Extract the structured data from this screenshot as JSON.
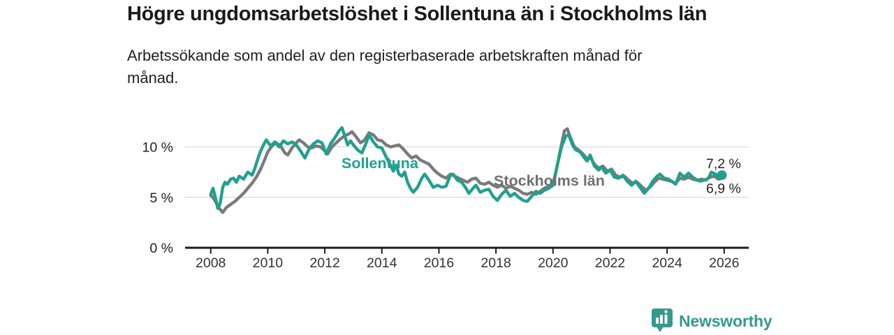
{
  "header": {
    "title": "Högre ungdomsarbetslöshet i Sollentuna än i Stockholms län",
    "subtitle_lines": [
      "Arbetssökande som andel av den registerbaserade arbetskraften månad för",
      "månad."
    ]
  },
  "chart_data": {
    "type": "line",
    "title": "Högre ungdomsarbetslöshet i Sollentuna än i Stockholms län",
    "subtitle": "Arbetssökande som andel av den registerbaserade arbetskraften månad för månad.",
    "unit": "%",
    "grid": "horizontal",
    "x_axis": {
      "range": [
        2007.03,
        2026.95
      ],
      "ticks": [
        2008,
        2010,
        2012,
        2014,
        2016,
        2018,
        2020,
        2022,
        2024,
        2026
      ]
    },
    "y_axis": {
      "range": [
        0,
        13.2
      ],
      "ticks": [
        {
          "value": 0,
          "label": "0 %"
        },
        {
          "value": 5,
          "label": "5 %"
        },
        {
          "value": 10,
          "label": "10 %"
        }
      ],
      "gridlines": [
        5,
        10
      ]
    },
    "series": [
      {
        "name": "Stockholms län",
        "color": "#7a7a7a",
        "label_color": "#6f6f6f",
        "end_label": "6,9 %",
        "end_value": 6.9,
        "end_dot": false,
        "points": [
          [
            2008.0,
            5.2
          ],
          [
            2008.1,
            4.9
          ],
          [
            2008.2,
            4.4
          ],
          [
            2008.3,
            3.9
          ],
          [
            2008.42,
            3.5
          ],
          [
            2008.55,
            4.0
          ],
          [
            2008.7,
            4.3
          ],
          [
            2008.85,
            4.6
          ],
          [
            2009.0,
            5.0
          ],
          [
            2009.15,
            5.4
          ],
          [
            2009.3,
            5.9
          ],
          [
            2009.45,
            6.4
          ],
          [
            2009.6,
            7.0
          ],
          [
            2009.75,
            7.8
          ],
          [
            2009.9,
            8.8
          ],
          [
            2010.0,
            9.5
          ],
          [
            2010.15,
            10.1
          ],
          [
            2010.3,
            10.4
          ],
          [
            2010.45,
            10.1
          ],
          [
            2010.6,
            9.4
          ],
          [
            2010.7,
            9.2
          ],
          [
            2010.85,
            9.9
          ],
          [
            2011.0,
            10.4
          ],
          [
            2011.1,
            10.7
          ],
          [
            2011.25,
            10.4
          ],
          [
            2011.4,
            10.0
          ],
          [
            2011.55,
            9.9
          ],
          [
            2011.7,
            10.1
          ],
          [
            2011.85,
            10.0
          ],
          [
            2012.0,
            9.6
          ],
          [
            2012.1,
            9.3
          ],
          [
            2012.25,
            10.0
          ],
          [
            2012.4,
            10.4
          ],
          [
            2012.55,
            10.8
          ],
          [
            2012.7,
            11.1
          ],
          [
            2012.85,
            11.3
          ],
          [
            2012.95,
            11.5
          ],
          [
            2013.1,
            11.0
          ],
          [
            2013.25,
            10.4
          ],
          [
            2013.4,
            10.7
          ],
          [
            2013.55,
            11.4
          ],
          [
            2013.7,
            11.2
          ],
          [
            2013.85,
            10.7
          ],
          [
            2014.0,
            10.6
          ],
          [
            2014.15,
            10.2
          ],
          [
            2014.3,
            10.0
          ],
          [
            2014.45,
            10.1
          ],
          [
            2014.6,
            10.2
          ],
          [
            2014.75,
            9.8
          ],
          [
            2014.9,
            9.3
          ],
          [
            2015.05,
            8.9
          ],
          [
            2015.2,
            9.1
          ],
          [
            2015.35,
            8.7
          ],
          [
            2015.5,
            8.5
          ],
          [
            2015.65,
            8.3
          ],
          [
            2015.8,
            7.8
          ],
          [
            2015.95,
            7.4
          ],
          [
            2016.1,
            7.1
          ],
          [
            2016.25,
            6.9
          ],
          [
            2016.4,
            7.3
          ],
          [
            2016.55,
            7.1
          ],
          [
            2016.7,
            6.9
          ],
          [
            2016.85,
            6.7
          ],
          [
            2017.0,
            6.5
          ],
          [
            2017.15,
            6.8
          ],
          [
            2017.3,
            6.9
          ],
          [
            2017.45,
            6.4
          ],
          [
            2017.6,
            6.3
          ],
          [
            2017.75,
            6.5
          ],
          [
            2017.9,
            6.2
          ],
          [
            2018.05,
            6.0
          ],
          [
            2018.2,
            6.2
          ],
          [
            2018.35,
            5.9
          ],
          [
            2018.5,
            6.1
          ],
          [
            2018.65,
            5.9
          ],
          [
            2018.8,
            5.7
          ],
          [
            2018.95,
            5.4
          ],
          [
            2019.1,
            5.3
          ],
          [
            2019.25,
            5.5
          ],
          [
            2019.4,
            5.3
          ],
          [
            2019.55,
            5.6
          ],
          [
            2019.7,
            5.9
          ],
          [
            2019.85,
            6.1
          ],
          [
            2020.0,
            6.4
          ],
          [
            2020.1,
            7.5
          ],
          [
            2020.25,
            9.6
          ],
          [
            2020.4,
            11.6
          ],
          [
            2020.5,
            11.8
          ],
          [
            2020.6,
            11.0
          ],
          [
            2020.75,
            10.0
          ],
          [
            2020.9,
            9.7
          ],
          [
            2021.05,
            9.3
          ],
          [
            2021.2,
            8.8
          ],
          [
            2021.3,
            9.0
          ],
          [
            2021.45,
            8.3
          ],
          [
            2021.6,
            7.9
          ],
          [
            2021.75,
            8.1
          ],
          [
            2021.9,
            7.6
          ],
          [
            2022.05,
            7.8
          ],
          [
            2022.2,
            7.2
          ],
          [
            2022.35,
            7.0
          ],
          [
            2022.5,
            7.1
          ],
          [
            2022.65,
            6.7
          ],
          [
            2022.8,
            6.4
          ],
          [
            2022.95,
            6.5
          ],
          [
            2023.1,
            6.1
          ],
          [
            2023.25,
            5.7
          ],
          [
            2023.4,
            6.0
          ],
          [
            2023.55,
            6.5
          ],
          [
            2023.7,
            6.9
          ],
          [
            2023.85,
            6.8
          ],
          [
            2024.0,
            6.7
          ],
          [
            2024.15,
            6.6
          ],
          [
            2024.3,
            6.4
          ],
          [
            2024.45,
            6.9
          ],
          [
            2024.6,
            6.8
          ],
          [
            2024.75,
            7.0
          ],
          [
            2024.9,
            6.8
          ],
          [
            2025.05,
            6.7
          ],
          [
            2025.2,
            6.8
          ],
          [
            2025.35,
            6.7
          ],
          [
            2025.5,
            7.0
          ],
          [
            2025.65,
            7.1
          ],
          [
            2025.8,
            6.8
          ],
          [
            2025.92,
            6.9
          ]
        ]
      },
      {
        "name": "Sollentuna",
        "color": "#21a08f",
        "label_color": "#21a08f",
        "end_label": "7,2 %",
        "end_value": 7.2,
        "end_dot": true,
        "points": [
          [
            2008.0,
            5.3
          ],
          [
            2008.08,
            5.9
          ],
          [
            2008.17,
            4.9
          ],
          [
            2008.25,
            3.9
          ],
          [
            2008.33,
            4.4
          ],
          [
            2008.42,
            6.0
          ],
          [
            2008.5,
            6.5
          ],
          [
            2008.58,
            6.3
          ],
          [
            2008.7,
            6.8
          ],
          [
            2008.8,
            6.9
          ],
          [
            2008.9,
            6.5
          ],
          [
            2009.0,
            7.1
          ],
          [
            2009.15,
            6.8
          ],
          [
            2009.3,
            7.5
          ],
          [
            2009.45,
            7.2
          ],
          [
            2009.55,
            7.9
          ],
          [
            2009.65,
            8.8
          ],
          [
            2009.75,
            9.6
          ],
          [
            2009.85,
            10.2
          ],
          [
            2009.95,
            10.7
          ],
          [
            2010.1,
            10.1
          ],
          [
            2010.25,
            10.5
          ],
          [
            2010.4,
            10.0
          ],
          [
            2010.55,
            10.6
          ],
          [
            2010.7,
            10.3
          ],
          [
            2010.85,
            10.5
          ],
          [
            2011.0,
            10.2
          ],
          [
            2011.15,
            9.6
          ],
          [
            2011.3,
            8.9
          ],
          [
            2011.45,
            9.8
          ],
          [
            2011.6,
            10.3
          ],
          [
            2011.75,
            10.6
          ],
          [
            2011.9,
            10.4
          ],
          [
            2012.05,
            9.3
          ],
          [
            2012.2,
            10.3
          ],
          [
            2012.35,
            10.9
          ],
          [
            2012.5,
            11.6
          ],
          [
            2012.6,
            11.9
          ],
          [
            2012.7,
            11.1
          ],
          [
            2012.8,
            10.2
          ],
          [
            2012.9,
            10.6
          ],
          [
            2013.0,
            10.2
          ],
          [
            2013.15,
            9.7
          ],
          [
            2013.3,
            9.4
          ],
          [
            2013.45,
            10.4
          ],
          [
            2013.55,
            11.2
          ],
          [
            2013.7,
            10.5
          ],
          [
            2013.85,
            10.0
          ],
          [
            2014.0,
            9.9
          ],
          [
            2014.15,
            9.0
          ],
          [
            2014.3,
            8.2
          ],
          [
            2014.4,
            7.6
          ],
          [
            2014.5,
            8.2
          ],
          [
            2014.6,
            7.3
          ],
          [
            2014.7,
            7.1
          ],
          [
            2014.8,
            7.5
          ],
          [
            2014.9,
            6.5
          ],
          [
            2015.0,
            5.9
          ],
          [
            2015.1,
            5.5
          ],
          [
            2015.25,
            6.0
          ],
          [
            2015.4,
            6.9
          ],
          [
            2015.5,
            7.3
          ],
          [
            2015.65,
            6.7
          ],
          [
            2015.8,
            6.0
          ],
          [
            2015.95,
            6.2
          ],
          [
            2016.1,
            6.0
          ],
          [
            2016.25,
            6.1
          ],
          [
            2016.4,
            7.2
          ],
          [
            2016.5,
            7.3
          ],
          [
            2016.65,
            6.7
          ],
          [
            2016.8,
            6.5
          ],
          [
            2016.95,
            5.9
          ],
          [
            2017.05,
            5.4
          ],
          [
            2017.2,
            5.9
          ],
          [
            2017.3,
            6.2
          ],
          [
            2017.45,
            5.5
          ],
          [
            2017.6,
            5.7
          ],
          [
            2017.75,
            5.8
          ],
          [
            2017.9,
            5.1
          ],
          [
            2018.05,
            4.7
          ],
          [
            2018.2,
            5.3
          ],
          [
            2018.35,
            5.7
          ],
          [
            2018.5,
            5.1
          ],
          [
            2018.65,
            5.4
          ],
          [
            2018.8,
            5.0
          ],
          [
            2018.95,
            4.7
          ],
          [
            2019.1,
            4.6
          ],
          [
            2019.25,
            5.1
          ],
          [
            2019.4,
            5.6
          ],
          [
            2019.55,
            5.4
          ],
          [
            2019.7,
            5.7
          ],
          [
            2019.85,
            5.9
          ],
          [
            2020.0,
            6.2
          ],
          [
            2020.15,
            8.2
          ],
          [
            2020.3,
            10.0
          ],
          [
            2020.45,
            11.1
          ],
          [
            2020.55,
            11.2
          ],
          [
            2020.7,
            10.1
          ],
          [
            2020.8,
            9.7
          ],
          [
            2020.95,
            9.5
          ],
          [
            2021.1,
            8.9
          ],
          [
            2021.2,
            8.6
          ],
          [
            2021.3,
            9.2
          ],
          [
            2021.45,
            8.1
          ],
          [
            2021.6,
            7.7
          ],
          [
            2021.7,
            8.0
          ],
          [
            2021.85,
            7.4
          ],
          [
            2022.0,
            7.7
          ],
          [
            2022.15,
            7.0
          ],
          [
            2022.3,
            6.9
          ],
          [
            2022.45,
            7.2
          ],
          [
            2022.6,
            6.6
          ],
          [
            2022.75,
            6.2
          ],
          [
            2022.9,
            6.6
          ],
          [
            2023.05,
            6.0
          ],
          [
            2023.2,
            5.4
          ],
          [
            2023.35,
            5.9
          ],
          [
            2023.5,
            6.6
          ],
          [
            2023.65,
            7.1
          ],
          [
            2023.75,
            7.3
          ],
          [
            2023.9,
            6.9
          ],
          [
            2024.05,
            6.8
          ],
          [
            2024.2,
            6.5
          ],
          [
            2024.3,
            6.3
          ],
          [
            2024.45,
            7.4
          ],
          [
            2024.6,
            7.0
          ],
          [
            2024.75,
            7.4
          ],
          [
            2024.9,
            7.0
          ],
          [
            2025.0,
            6.8
          ],
          [
            2025.15,
            6.6
          ],
          [
            2025.3,
            6.7
          ],
          [
            2025.45,
            6.9
          ],
          [
            2025.55,
            7.5
          ],
          [
            2025.7,
            7.3
          ],
          [
            2025.8,
            6.9
          ],
          [
            2025.92,
            7.2
          ]
        ]
      }
    ]
  },
  "footer": {
    "brand": "Newsworthy",
    "logo_icon": "bar-chart-speech-bubble-icon",
    "brand_color": "#35998e"
  }
}
